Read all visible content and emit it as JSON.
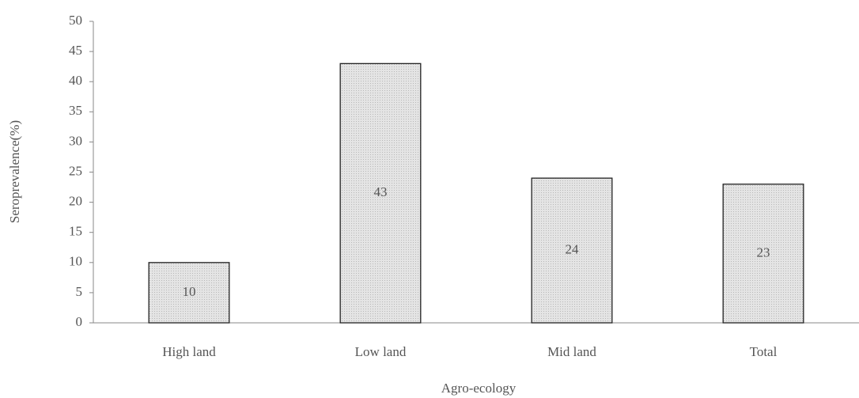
{
  "chart_data": {
    "type": "bar",
    "categories": [
      "High land",
      "Low land",
      "Mid land",
      "Total"
    ],
    "values": [
      10,
      43,
      24,
      23
    ],
    "color": "#d9d9d9",
    "xlabel": "Agro-ecology",
    "ylabel": "Seroprevalence(%)",
    "ylim": [
      0,
      50
    ],
    "yticks": [
      0,
      5,
      10,
      15,
      20,
      25,
      30,
      35,
      40,
      45,
      50
    ],
    "grid": false
  }
}
